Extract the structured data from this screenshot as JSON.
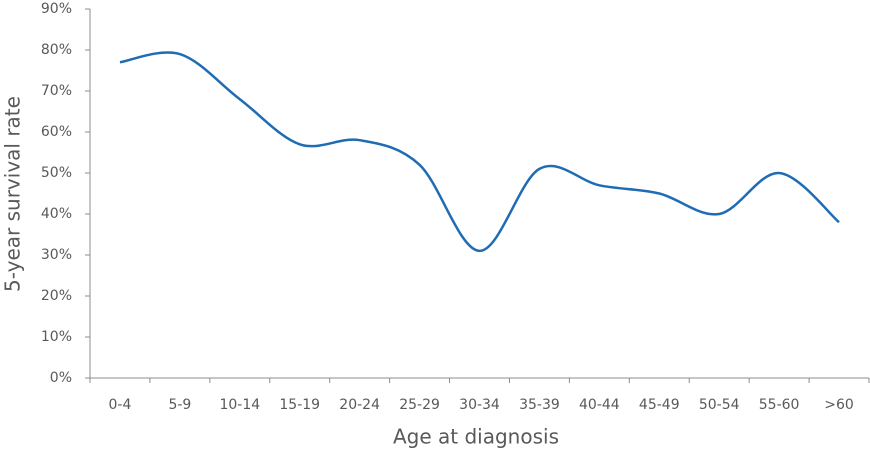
{
  "chart_data": {
    "type": "line",
    "x_label": "Age at diagnosis",
    "y_label": "5-year survival rate",
    "categories": [
      "0-4",
      "5-9",
      "10-14",
      "15-19",
      "20-24",
      "25-29",
      "30-34",
      "35-39",
      "40-44",
      "45-49",
      "50-54",
      "55-60",
      ">60"
    ],
    "values": [
      77,
      79,
      68,
      57,
      58,
      52,
      31,
      51,
      47,
      45,
      40,
      50,
      38
    ],
    "color": "#1f6cb4",
    "smooth": true,
    "ylim": [
      0,
      90
    ],
    "yticks": [
      {
        "value": 0,
        "label": "0%"
      },
      {
        "value": 10,
        "label": "10%"
      },
      {
        "value": 20,
        "label": "20%"
      },
      {
        "value": 30,
        "label": "30%"
      },
      {
        "value": 40,
        "label": "40%"
      },
      {
        "value": 50,
        "label": "50%"
      },
      {
        "value": 60,
        "label": "60%"
      },
      {
        "value": 70,
        "label": "70%"
      },
      {
        "value": 80,
        "label": "80%"
      },
      {
        "value": 90,
        "label": "90%"
      }
    ],
    "grid": false
  }
}
